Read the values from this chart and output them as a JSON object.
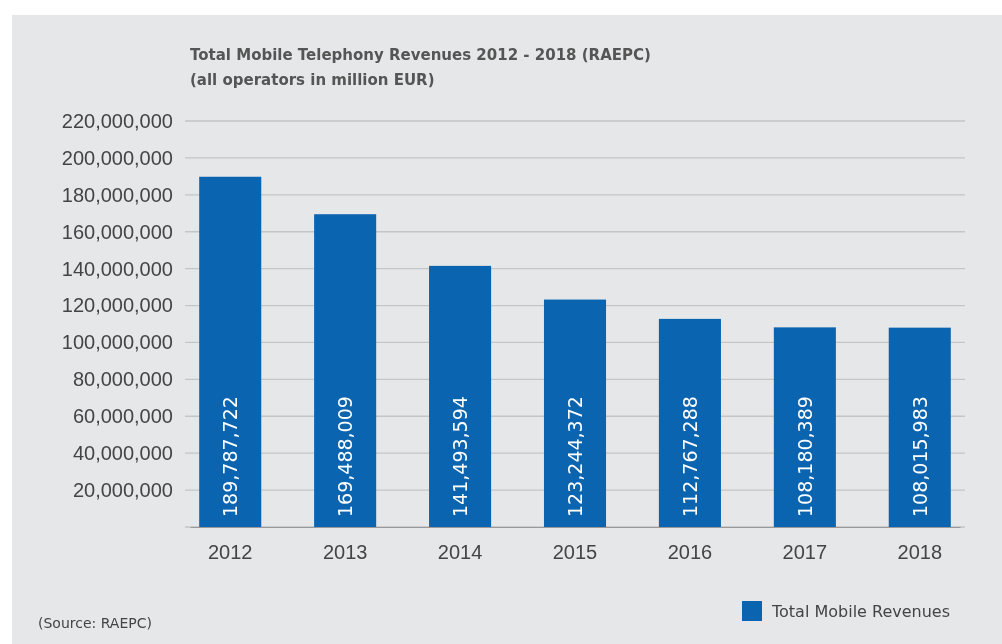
{
  "chart_data": {
    "type": "bar",
    "title": "Total Mobile Telephony Revenues 2012 - 2018 (RAEPC)",
    "subtitle": "(all operators in million EUR)",
    "categories": [
      "2012",
      "2013",
      "2014",
      "2015",
      "2016",
      "2017",
      "2018"
    ],
    "series": [
      {
        "name": "Total Mobile Revenues",
        "color": "#0b64b0",
        "values": [
          189787722,
          169488009,
          141493594,
          123244372,
          112767288,
          108180389,
          108015983
        ],
        "value_labels": [
          "189,787,722",
          "169,488,009",
          "141,493,594",
          "123,244,372",
          "112,767,288",
          "108,180,389",
          "108,015,983"
        ]
      }
    ],
    "ylim": [
      0,
      220000000
    ],
    "yticks": [
      {
        "value": 0,
        "label": null
      },
      {
        "value": 20000000,
        "label": "20,000,000"
      },
      {
        "value": 40000000,
        "label": "40,000,000"
      },
      {
        "value": 60000000,
        "label": "60,000,000"
      },
      {
        "value": 80000000,
        "label": "80,000,000"
      },
      {
        "value": 100000000,
        "label": "100,000,000"
      },
      {
        "value": 120000000,
        "label": "120,000,000"
      },
      {
        "value": 140000000,
        "label": "140,000,000"
      },
      {
        "value": 160000000,
        "label": "160,000,000"
      },
      {
        "value": 180000000,
        "label": "180,000,000"
      },
      {
        "value": 200000000,
        "label": "200,000,000"
      },
      {
        "value": 220000000,
        "label": "220,000,000"
      }
    ],
    "grid": "y",
    "legend": "bottom right",
    "annotations": [
      "(Source: RAEPC)"
    ]
  }
}
